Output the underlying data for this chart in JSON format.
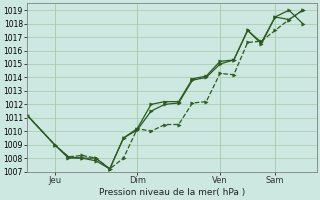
{
  "background_color": "#cce8e0",
  "grid_color": "#a8c8a8",
  "line_color": "#2d5a1e",
  "xlabel_text": "Pression niveau de la mer( hPa )",
  "xtick_labels": [
    "Jeu",
    "Dim",
    "Ven",
    "Sam"
  ],
  "xtick_positions": [
    1,
    4,
    7,
    9
  ],
  "ylim": [
    1007,
    1019.5
  ],
  "yticks": [
    1007,
    1008,
    1009,
    1010,
    1011,
    1012,
    1013,
    1014,
    1015,
    1016,
    1017,
    1018,
    1019
  ],
  "xlim": [
    0,
    10.5
  ],
  "vline_x": [
    1,
    4,
    7,
    9
  ],
  "s1_x": [
    0.0,
    1.0,
    1.5,
    2.0,
    2.5,
    3.0,
    3.5,
    4.0,
    4.5,
    5.0,
    5.5,
    6.0,
    6.5,
    7.0,
    7.5,
    8.0,
    8.5,
    9.0,
    9.5,
    10.0
  ],
  "s1_y": [
    1011.2,
    1009.0,
    1008.1,
    1008.2,
    1008.0,
    1007.2,
    1008.0,
    1010.2,
    1010.0,
    1010.5,
    1010.5,
    1012.1,
    1012.2,
    1014.3,
    1014.2,
    1016.6,
    1016.7,
    1017.5,
    1018.3,
    1019.0
  ],
  "s2_x": [
    0.0,
    1.0,
    1.5,
    2.0,
    2.5,
    3.0,
    3.5,
    4.0,
    4.5,
    5.0,
    5.5,
    6.0,
    6.5,
    7.0,
    7.5,
    8.0,
    8.5,
    9.0,
    9.5,
    10.0
  ],
  "s2_y": [
    1011.2,
    1009.0,
    1008.1,
    1008.0,
    1008.0,
    1007.2,
    1009.5,
    1010.2,
    1012.0,
    1012.2,
    1012.2,
    1013.9,
    1014.1,
    1015.2,
    1015.3,
    1017.5,
    1016.6,
    1018.5,
    1019.0,
    1018.0
  ],
  "s3_x": [
    0.0,
    1.0,
    1.5,
    2.0,
    2.5,
    3.0,
    3.5,
    4.0,
    4.5,
    5.0,
    5.5,
    6.0,
    6.5,
    7.0,
    7.5,
    8.0,
    8.5,
    9.0,
    9.5,
    10.0
  ],
  "s3_y": [
    1011.2,
    1009.0,
    1008.0,
    1008.0,
    1007.8,
    1007.2,
    1009.5,
    1010.1,
    1011.5,
    1012.0,
    1012.1,
    1013.8,
    1014.0,
    1015.0,
    1015.3,
    1017.5,
    1016.5,
    1018.5,
    1018.3,
    1019.0
  ],
  "marker_size": 2.5,
  "line_width": 0.9
}
